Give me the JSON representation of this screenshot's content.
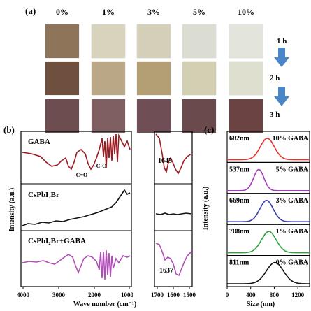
{
  "figure": {
    "panel_a": {
      "label": "(a)",
      "concentrations": [
        "0%",
        "1%",
        "3%",
        "5%",
        "10%"
      ],
      "times": [
        "1 h",
        "2 h",
        "3 h"
      ],
      "tile_colors": [
        [
          "#8e7559",
          "#d8d3bc",
          "#d4cfb8",
          "#dcddd2",
          "#e3e4dc"
        ],
        [
          "#6f4f3e",
          "#b9a786",
          "#b49e73",
          "#d3cfb3",
          "#dfdfd0"
        ],
        [
          "#6e4d50",
          "#7f5f62",
          "#6f4e56",
          "#6a4a4d",
          "#6b4342"
        ]
      ],
      "arrow_color": "#4a86c8"
    },
    "panel_b": {
      "label": "(b)",
      "traces": [
        "GABA",
        "CsPbI₂Br",
        "CsPbI₂Br+GABA"
      ],
      "annotations": {
        "c_eq_o": "-C=O",
        "c_o": "-C-O",
        "peak_top": "1645",
        "peak_bottom": "1637"
      },
      "x_ticks_left": [
        "4000",
        "3000",
        "2000",
        "1000"
      ],
      "x_ticks_right": [
        "1700",
        "1600",
        "1500"
      ],
      "ylabel": "Intensity (a.u.)",
      "xlabel": "Wave number (cm⁻¹)",
      "colors": {
        "gaba": "#9b1b22",
        "cspb": "#111111",
        "mix": "#b14fb8"
      }
    },
    "panel_c": {
      "label": "(c)",
      "ylabel": "Intensity (a.u.)",
      "xlabel": "Size (nm)",
      "x_ticks": [
        "0",
        "400",
        "800",
        "1200"
      ]
    }
  },
  "chart_data": [
    {
      "type": "line",
      "panel": "(c)",
      "xlabel": "Size (nm)",
      "ylabel": "Intensity (a.u.)",
      "xlim": [
        0,
        1400
      ],
      "x_ticks": [
        0,
        400,
        800,
        1200
      ],
      "series": [
        {
          "name": "10% GABA",
          "size_label": "682nm",
          "center": 682,
          "width": 190,
          "color": "#e8322e"
        },
        {
          "name": "5% GABA",
          "size_label": "537nm",
          "center": 537,
          "width": 140,
          "color": "#a63bbf"
        },
        {
          "name": "3% GABA",
          "size_label": "669nm",
          "center": 669,
          "width": 180,
          "color": "#3a3fa8"
        },
        {
          "name": "1% GABA",
          "size_label": "708nm",
          "center": 708,
          "width": 200,
          "color": "#2fa33a"
        },
        {
          "name": "0% GABA",
          "size_label": "811nm",
          "center": 811,
          "width": 230,
          "color": "#111111"
        }
      ]
    }
  ]
}
